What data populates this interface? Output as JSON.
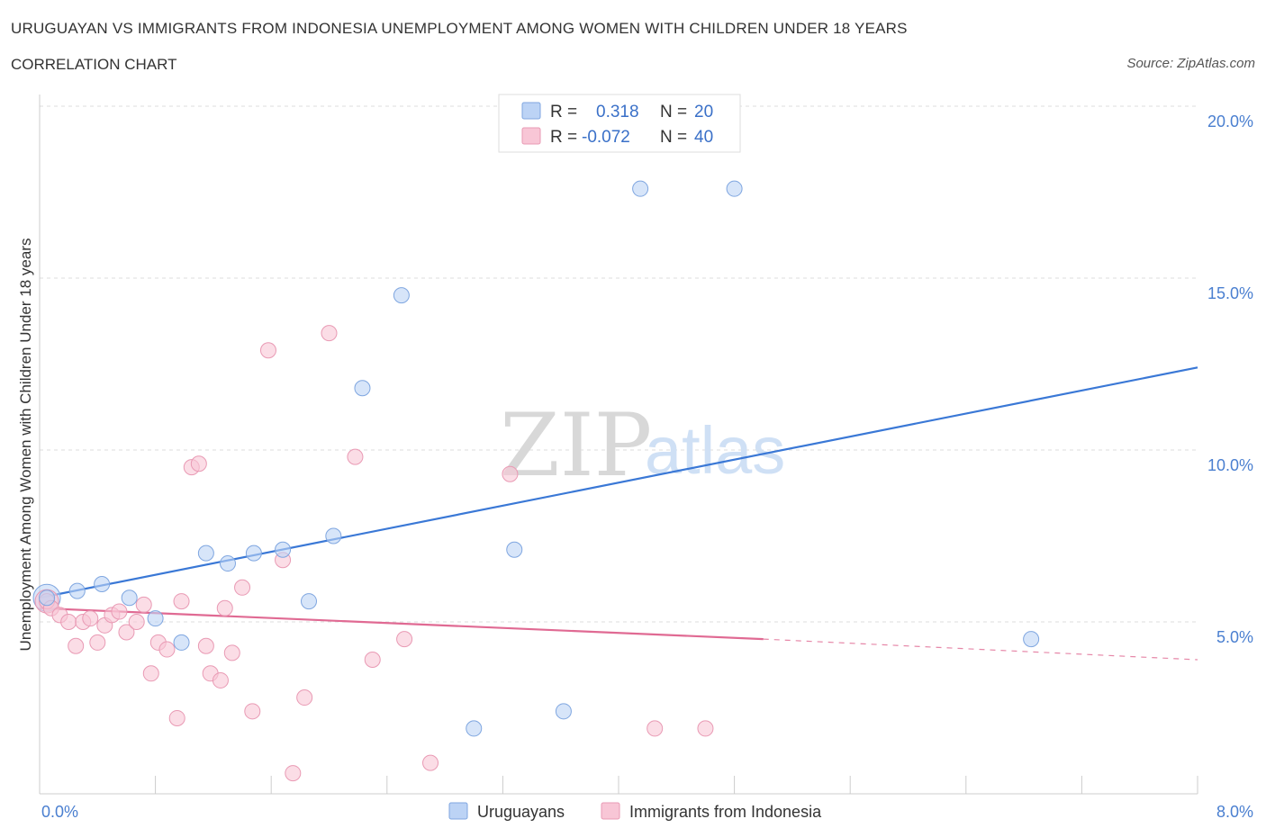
{
  "header": {
    "title": "URUGUAYAN VS IMMIGRANTS FROM INDONESIA UNEMPLOYMENT AMONG WOMEN WITH CHILDREN UNDER 18 YEARS",
    "subtitle": "CORRELATION CHART",
    "source": "Source: ZipAtlas.com"
  },
  "watermark": {
    "zip": "ZIP",
    "atlas": "atlas"
  },
  "legend": {
    "row1": {
      "r_label": "R =",
      "r_value": "0.318",
      "n_label": "N =",
      "n_value": "20"
    },
    "row2": {
      "r_label": "R =",
      "r_value": "-0.072",
      "n_label": "N =",
      "n_value": "40"
    }
  },
  "bottom_legend": {
    "series1": "Uruguayans",
    "series2": "Immigrants from Indonesia"
  },
  "colors": {
    "blue_fill": "#bcd3f5",
    "blue_stroke": "#7fa6e0",
    "blue_line": "#3a78d6",
    "pink_fill": "#f8c6d6",
    "pink_stroke": "#e99ab4",
    "pink_line": "#e06a93",
    "grid": "#dddddd",
    "axis": "#cccccc"
  },
  "chart_data": {
    "type": "scatter",
    "title": "URUGUAYAN VS IMMIGRANTS FROM INDONESIA UNEMPLOYMENT AMONG WOMEN WITH CHILDREN UNDER 18 YEARS",
    "xlabel": "",
    "ylabel": "Unemployment Among Women with Children Under 18 years",
    "xlim": [
      0,
      8
    ],
    "ylim": [
      0,
      20
    ],
    "x_tick_labels": [
      "0.0%",
      "8.0%"
    ],
    "y_ticks": [
      5,
      10,
      15,
      20
    ],
    "y_tick_labels": [
      "5.0%",
      "10.0%",
      "15.0%",
      "20.0%"
    ],
    "grid": true,
    "legend_position": "top-center",
    "series": [
      {
        "name": "Uruguayans",
        "color": "#7fa6e0",
        "r": 0.318,
        "n": 20,
        "points": [
          [
            0.05,
            5.7
          ],
          [
            0.26,
            5.9
          ],
          [
            0.43,
            6.1
          ],
          [
            0.62,
            5.7
          ],
          [
            0.8,
            5.1
          ],
          [
            0.98,
            4.4
          ],
          [
            1.15,
            7.0
          ],
          [
            1.3,
            6.7
          ],
          [
            1.48,
            7.0
          ],
          [
            1.68,
            7.1
          ],
          [
            1.86,
            5.6
          ],
          [
            2.03,
            7.5
          ],
          [
            2.23,
            11.8
          ],
          [
            2.5,
            14.5
          ],
          [
            3.0,
            1.9
          ],
          [
            3.28,
            7.1
          ],
          [
            3.62,
            2.4
          ],
          [
            4.15,
            17.6
          ],
          [
            4.8,
            17.6
          ],
          [
            6.85,
            4.5
          ]
        ],
        "trend": {
          "x": [
            0,
            8
          ],
          "y": [
            5.7,
            12.4
          ]
        }
      },
      {
        "name": "Immigrants from Indonesia",
        "color": "#e99ab4",
        "r": -0.072,
        "n": 40,
        "points": [
          [
            0.05,
            5.6
          ],
          [
            0.08,
            5.4
          ],
          [
            0.14,
            5.2
          ],
          [
            0.2,
            5.0
          ],
          [
            0.25,
            4.3
          ],
          [
            0.3,
            5.0
          ],
          [
            0.35,
            5.1
          ],
          [
            0.4,
            4.4
          ],
          [
            0.45,
            4.9
          ],
          [
            0.5,
            5.2
          ],
          [
            0.55,
            5.3
          ],
          [
            0.6,
            4.7
          ],
          [
            0.67,
            5.0
          ],
          [
            0.72,
            5.5
          ],
          [
            0.77,
            3.5
          ],
          [
            0.82,
            4.4
          ],
          [
            0.88,
            4.2
          ],
          [
            0.95,
            2.2
          ],
          [
            0.98,
            5.6
          ],
          [
            1.05,
            9.5
          ],
          [
            1.1,
            9.6
          ],
          [
            1.15,
            4.3
          ],
          [
            1.18,
            3.5
          ],
          [
            1.25,
            3.3
          ],
          [
            1.28,
            5.4
          ],
          [
            1.33,
            4.1
          ],
          [
            1.4,
            6.0
          ],
          [
            1.47,
            2.4
          ],
          [
            1.58,
            12.9
          ],
          [
            1.68,
            6.8
          ],
          [
            1.75,
            0.6
          ],
          [
            1.83,
            2.8
          ],
          [
            2.0,
            13.4
          ],
          [
            2.18,
            9.8
          ],
          [
            2.3,
            3.9
          ],
          [
            2.52,
            4.5
          ],
          [
            2.7,
            0.9
          ],
          [
            3.25,
            9.3
          ],
          [
            4.25,
            1.9
          ],
          [
            4.6,
            1.9
          ]
        ],
        "trend": {
          "x": [
            0,
            5.0
          ],
          "y": [
            5.4,
            4.5
          ]
        },
        "trend_dashed": {
          "x": [
            5.0,
            8
          ],
          "y": [
            4.5,
            3.9
          ]
        }
      }
    ]
  }
}
